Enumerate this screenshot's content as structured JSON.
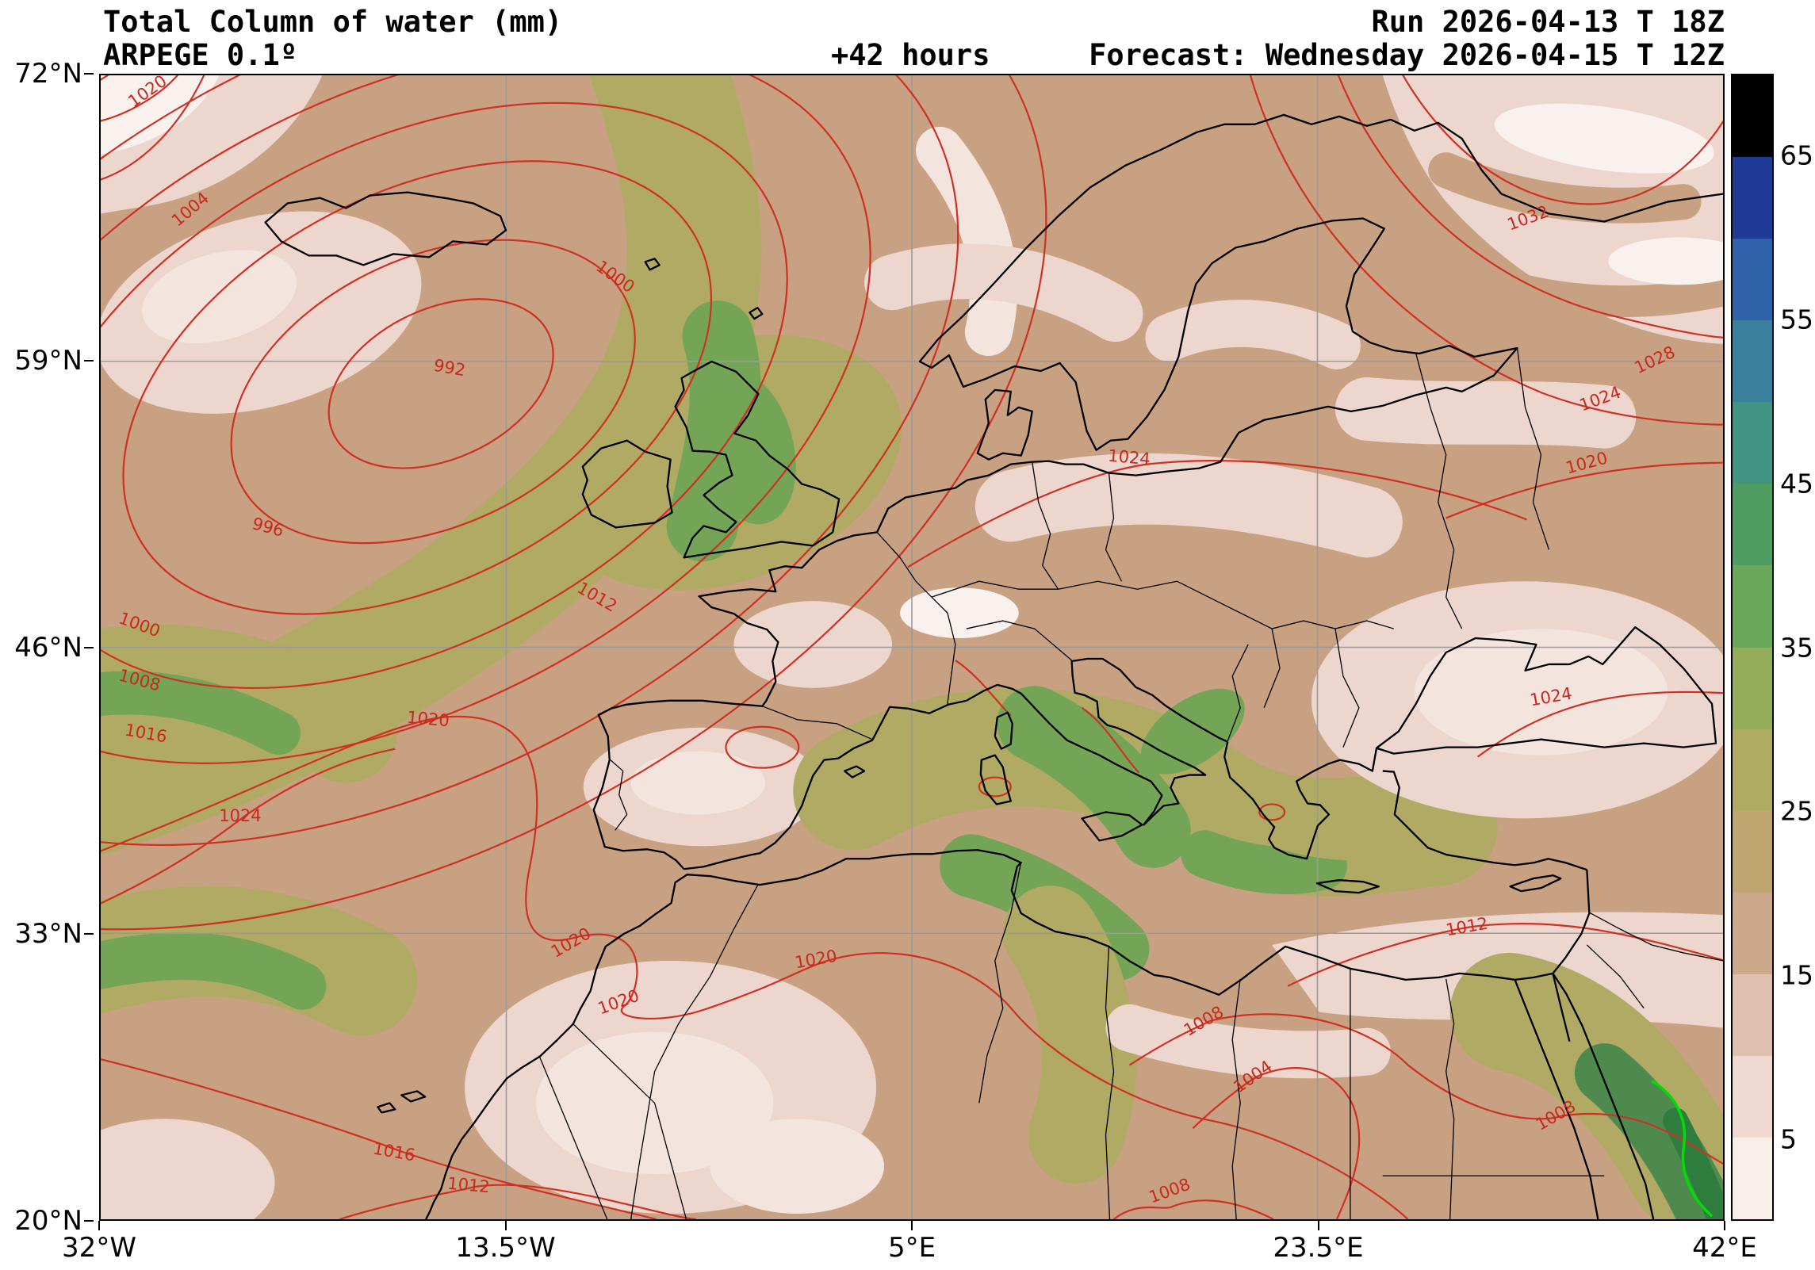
{
  "header": {
    "title": "Total Column of water (mm)",
    "model_line": "ARPEGE 0.1º",
    "lead_time": "+42 hours",
    "run_line": "Run 2026-04-13 T 18Z",
    "forecast_line": "Forecast: Wednesday 2026-04-15 T 12Z"
  },
  "chart_data": {
    "type": "heatmap",
    "subtype": "filled-contour-weather-map",
    "variable": "Total Column of water (mm)",
    "unit": "mm",
    "model": "ARPEGE 0.1º",
    "run": "2026-04-13 18Z",
    "lead_hours": 42,
    "forecast_valid": "Wednesday 2026-04-15 12Z",
    "region": "Europe / North Atlantic / North Africa",
    "lon_range_deg": [
      -32,
      42
    ],
    "lat_range_deg": [
      20,
      72
    ],
    "grid": true,
    "x_ticks": [
      "32°W",
      "13.5°W",
      "5°E",
      "23.5°E",
      "42°E"
    ],
    "y_ticks": [
      "72°N",
      "59°N",
      "46°N",
      "33°N",
      "20°N"
    ],
    "colorbar": {
      "unit": "mm",
      "tick_labels": [
        "65",
        "55",
        "45",
        "35",
        "25",
        "15",
        "5"
      ],
      "levels": [
        0,
        5,
        10,
        15,
        20,
        25,
        30,
        35,
        40,
        45,
        50,
        55,
        60,
        65,
        70
      ],
      "colors_bottom_to_top": [
        "#f8eeea",
        "#efd9d0",
        "#dfc0ae",
        "#cca98a",
        "#bfa671",
        "#b0ab62",
        "#93ad5a",
        "#6ca85a",
        "#4f9d60",
        "#3f957f",
        "#38809b",
        "#2f62a8",
        "#1f3a96",
        "#000000"
      ]
    },
    "isobar_line_color": "#d03024",
    "coastline_color": "#000000",
    "special_contour_color": "#00dd00",
    "isobar_labels": [
      {
        "value": "1020",
        "x_pct": 2.9,
        "y_pct": 1.4,
        "angle": -35
      },
      {
        "value": "1004",
        "x_pct": 5.5,
        "y_pct": 11.7,
        "angle": -40
      },
      {
        "value": "1000",
        "x_pct": 31.7,
        "y_pct": 17.6,
        "angle": 35
      },
      {
        "value": "992",
        "x_pct": 21.5,
        "y_pct": 25.6,
        "angle": 10
      },
      {
        "value": "996",
        "x_pct": 10.3,
        "y_pct": 39.5,
        "angle": 15
      },
      {
        "value": "1000",
        "x_pct": 2.4,
        "y_pct": 48.0,
        "angle": 20
      },
      {
        "value": "1008",
        "x_pct": 2.4,
        "y_pct": 52.9,
        "angle": 15
      },
      {
        "value": "1012",
        "x_pct": 30.6,
        "y_pct": 45.6,
        "angle": 30
      },
      {
        "value": "1016",
        "x_pct": 2.8,
        "y_pct": 57.5,
        "angle": 10
      },
      {
        "value": "1020",
        "x_pct": 20.2,
        "y_pct": 56.3,
        "angle": 5
      },
      {
        "value": "1024",
        "x_pct": 8.6,
        "y_pct": 64.7,
        "angle": 0
      },
      {
        "value": "1020",
        "x_pct": 29.0,
        "y_pct": 75.8,
        "angle": -30
      },
      {
        "value": "1020",
        "x_pct": 44.1,
        "y_pct": 77.3,
        "angle": -10
      },
      {
        "value": "1020",
        "x_pct": 31.9,
        "y_pct": 81.0,
        "angle": -20
      },
      {
        "value": "1016",
        "x_pct": 18.1,
        "y_pct": 94.1,
        "angle": 10
      },
      {
        "value": "1012",
        "x_pct": 22.7,
        "y_pct": 97.0,
        "angle": 5
      },
      {
        "value": "1032",
        "x_pct": 88.0,
        "y_pct": 12.5,
        "angle": -20
      },
      {
        "value": "1028",
        "x_pct": 95.8,
        "y_pct": 24.9,
        "angle": -25
      },
      {
        "value": "1024",
        "x_pct": 92.4,
        "y_pct": 28.3,
        "angle": -20
      },
      {
        "value": "1020",
        "x_pct": 91.6,
        "y_pct": 33.9,
        "angle": -15
      },
      {
        "value": "1024",
        "x_pct": 89.4,
        "y_pct": 54.3,
        "angle": -10
      },
      {
        "value": "1024",
        "x_pct": 63.4,
        "y_pct": 33.4,
        "angle": 5
      },
      {
        "value": "1012",
        "x_pct": 84.2,
        "y_pct": 74.4,
        "angle": -10
      },
      {
        "value": "1008",
        "x_pct": 68.0,
        "y_pct": 82.7,
        "angle": -30
      },
      {
        "value": "1004",
        "x_pct": 71.0,
        "y_pct": 87.5,
        "angle": -35
      },
      {
        "value": "1008",
        "x_pct": 89.7,
        "y_pct": 90.9,
        "angle": -30
      },
      {
        "value": "1008",
        "x_pct": 65.9,
        "y_pct": 97.5,
        "angle": -20
      }
    ]
  }
}
